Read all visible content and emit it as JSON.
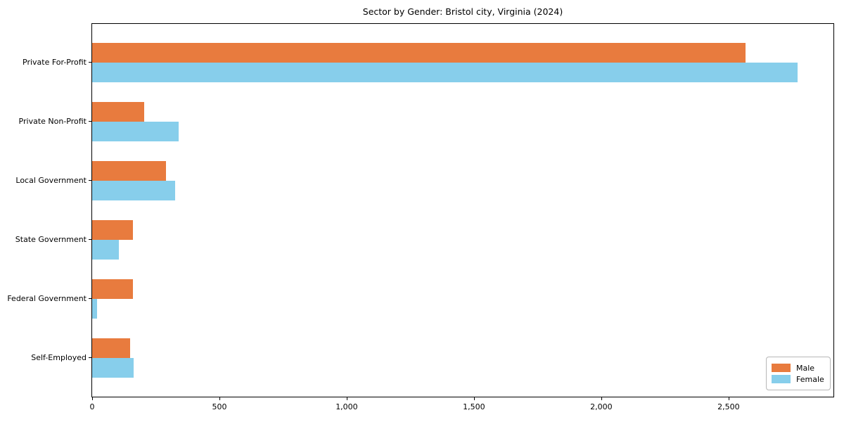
{
  "chart_data": {
    "type": "bar",
    "orientation": "horizontal",
    "title": "Sector by Gender: Bristol city, Virginia (2024)",
    "categories": [
      "Private For-Profit",
      "Private Non-Profit",
      "Local Government",
      "State Government",
      "Federal Government",
      "Self-Employed"
    ],
    "series": [
      {
        "name": "Male",
        "color": "#e87b3e",
        "values": [
          2568,
          205,
          289,
          161,
          160,
          148
        ]
      },
      {
        "name": "Female",
        "color": "#87ceeb",
        "values": [
          2772,
          339,
          326,
          106,
          19,
          163
        ]
      }
    ],
    "xlabel": "",
    "ylabel": "",
    "xlim": [
      0,
      2912
    ],
    "xticks": {
      "values": [
        0,
        500,
        1000,
        1500,
        2000,
        2500
      ],
      "labels": [
        "0",
        "500",
        "1,000",
        "1,500",
        "2,000",
        "2,500"
      ]
    },
    "grid": false,
    "legend_position": "lower right",
    "axis_color": "#000000",
    "background_color": "#ffffff"
  }
}
